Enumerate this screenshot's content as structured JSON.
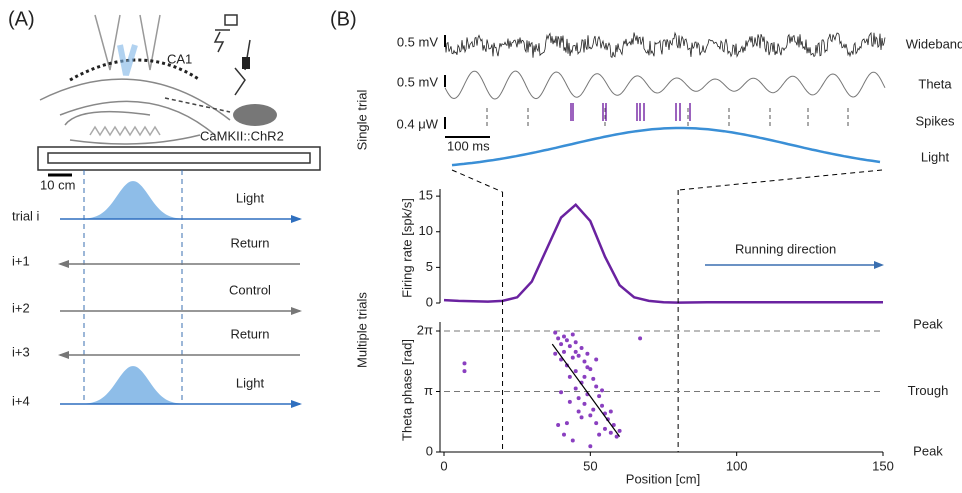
{
  "panel_a": {
    "label": "(A)",
    "region": "CA1",
    "mouse": "CaMKII::ChR2",
    "scale": "10 cm",
    "trials": [
      {
        "name": "trial i",
        "condition": "Light"
      },
      {
        "name": "i+1",
        "condition": "Return"
      },
      {
        "name": "i+2",
        "condition": "Control"
      },
      {
        "name": "i+3",
        "condition": "Return"
      },
      {
        "name": "i+4",
        "condition": "Light"
      }
    ]
  },
  "panel_b": {
    "label": "(B)",
    "single_trial": "Single trial",
    "multiple_trials": "Multiple trials",
    "traces": [
      {
        "name": "Wideband",
        "scale": "0.5 mV",
        "color": "#222222"
      },
      {
        "name": "Theta",
        "scale": "0.5 mV",
        "color": "#777777"
      },
      {
        "name": "Spikes",
        "color": "#7b2fa8"
      },
      {
        "name": "Light",
        "scale": "0.4 μW",
        "color": "#3a8fd6"
      }
    ],
    "time_scale": "100 ms",
    "running_direction": "Running direction"
  },
  "chart_data": [
    {
      "type": "line",
      "ylabel": "Firing rate [spk/s]",
      "color": "#6a22a0",
      "x": [
        0,
        5,
        10,
        15,
        20,
        25,
        30,
        35,
        40,
        45,
        50,
        55,
        60,
        65,
        70,
        75,
        80,
        90,
        100,
        110,
        120,
        130,
        140,
        150
      ],
      "values": [
        0.4,
        0.3,
        0.25,
        0.2,
        0.3,
        0.8,
        3,
        7.5,
        12,
        13.8,
        11.5,
        6.5,
        2.5,
        0.8,
        0.3,
        0.1,
        0.05,
        0.1,
        0.1,
        0.1,
        0.1,
        0.1,
        0.1,
        0.1
      ],
      "xlim": [
        0,
        150
      ],
      "ylim": [
        0,
        16
      ],
      "yticks": [
        0,
        5,
        10,
        15
      ],
      "light_zone": [
        20,
        80
      ]
    },
    {
      "type": "scatter",
      "ylabel": "Theta phase [rad]",
      "xlabel": "Position [cm]",
      "color": "#8a3fc0",
      "x": [
        7,
        7,
        67,
        38,
        39,
        40,
        40,
        41,
        41,
        42,
        42,
        43,
        43,
        44,
        44,
        45,
        45,
        45,
        46,
        46,
        47,
        47,
        48,
        48,
        49,
        49,
        50,
        50,
        51,
        51,
        52,
        52,
        53,
        53,
        54,
        55,
        55,
        56,
        57,
        58,
        59,
        60,
        42,
        44,
        46,
        48,
        50,
        52,
        38,
        40,
        43,
        47,
        49,
        54,
        57,
        45,
        41,
        39
      ],
      "y": [
        4.6,
        4.2,
        5.9,
        6.2,
        5.9,
        5.6,
        4.8,
        6.0,
        5.2,
        5.8,
        4.5,
        5.5,
        3.9,
        6.1,
        4.9,
        5.7,
        4.2,
        3.3,
        5.0,
        2.8,
        5.4,
        3.6,
        4.7,
        2.5,
        5.1,
        3.0,
        4.3,
        1.9,
        3.8,
        2.2,
        3.4,
        1.5,
        2.9,
        0.9,
        2.4,
        2.0,
        1.2,
        1.7,
        1.0,
        1.4,
        0.8,
        1.1,
        1.5,
        0.6,
        2.1,
        3.9,
        0.3,
        4.8,
        5.1,
        3.1,
        2.6,
        1.8,
        4.4,
        3.2,
        2.1,
        5.2,
        0.9,
        1.4
      ],
      "fit": {
        "x": [
          37,
          60
        ],
        "y": [
          5.6,
          0.8
        ]
      },
      "xlim": [
        0,
        150
      ],
      "xticks": [
        0,
        50,
        100,
        150
      ],
      "ylim": [
        0,
        6.75
      ],
      "yticks": [
        0,
        {
          "value": 3.1416,
          "label": "π"
        },
        {
          "value": 6.2832,
          "label": "2π"
        }
      ],
      "phase_labels": [
        {
          "value": 6.2832,
          "label": "Peak"
        },
        {
          "value": 3.1416,
          "label": "Trough"
        },
        {
          "value": 0,
          "label": "Peak"
        }
      ]
    }
  ]
}
